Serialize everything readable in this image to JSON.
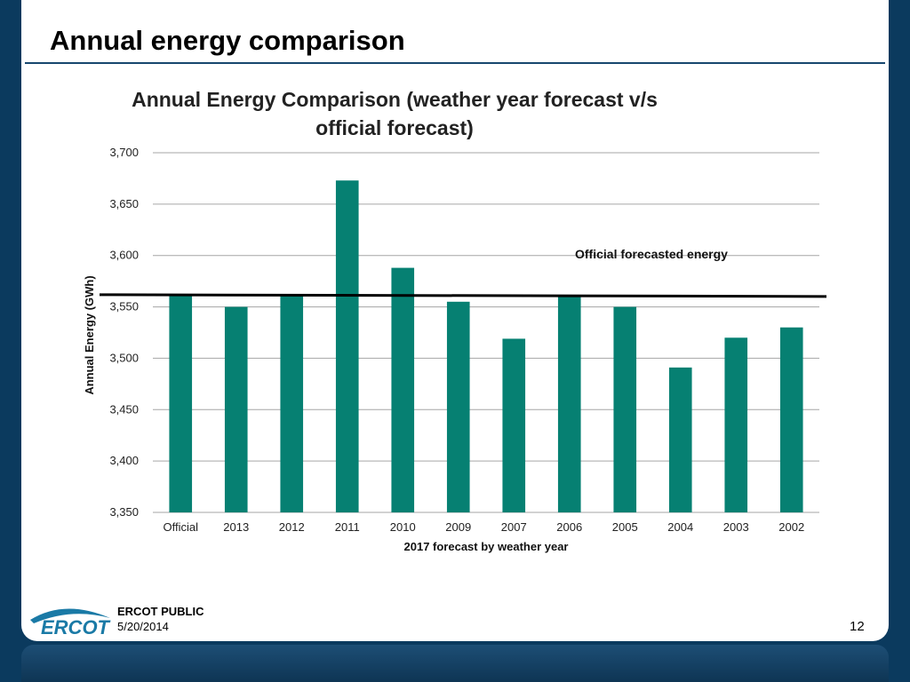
{
  "slide": {
    "title": "Annual energy comparison",
    "footer_label": "ERCOT PUBLIC",
    "footer_date": "5/20/2014",
    "page_number": "12",
    "logo_text": "ERCOT"
  },
  "chart_data": {
    "type": "bar",
    "title": "Annual Energy Comparison (weather year forecast v/s official forecast)",
    "title_lines": [
      "Annual Energy Comparison (weather year forecast v/s",
      "official forecast)"
    ],
    "xlabel": "2017 forecast by weather year",
    "ylabel": "Annual Energy (GWh)",
    "ylim": [
      3350,
      3700
    ],
    "yticks": [
      3350,
      3400,
      3450,
      3500,
      3550,
      3600,
      3650,
      3700
    ],
    "ytick_labels": [
      "3,350",
      "3,400",
      "3,450",
      "3,500",
      "3,550",
      "3,600",
      "3,650",
      "3,700"
    ],
    "categories": [
      "Official",
      "2013",
      "2012",
      "2011",
      "2010",
      "2009",
      "2007",
      "2006",
      "2005",
      "2004",
      "2003",
      "2002"
    ],
    "values": [
      3562,
      3550,
      3561,
      3673,
      3588,
      3555,
      3519,
      3561,
      3550,
      3491,
      3520,
      3530
    ],
    "bar_color": "#068072",
    "grid": true,
    "reference_line": {
      "label": "Official forecasted energy",
      "value": 3561,
      "color": "#000000"
    }
  },
  "colors": {
    "background": "#0b3a5e",
    "title_rule": "#17476e",
    "logo": "#1a7aa6"
  }
}
